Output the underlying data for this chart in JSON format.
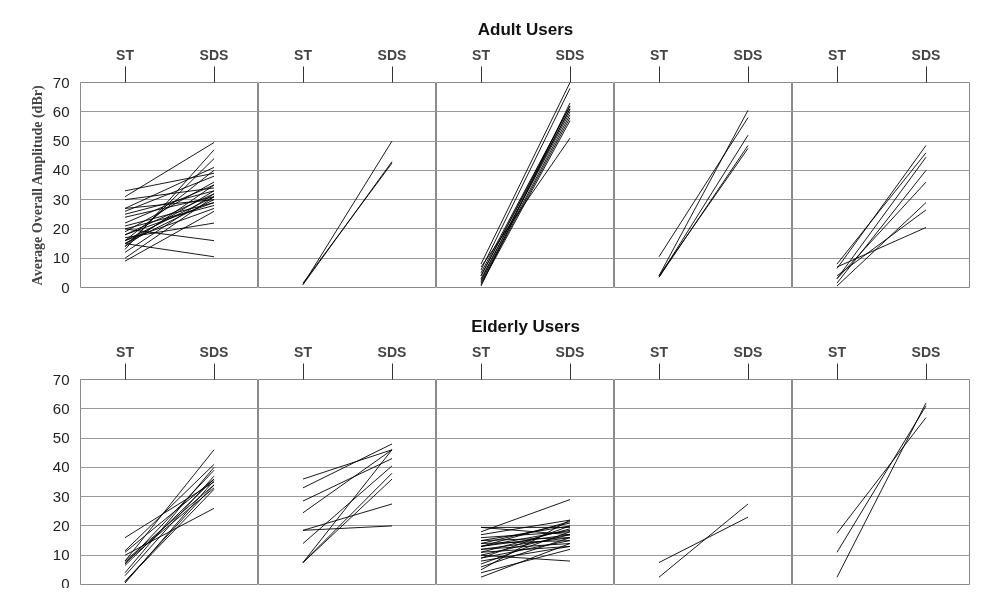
{
  "chart_data": [
    {
      "type": "line",
      "categories": [
        "ST",
        "SDS"
      ],
      "ylabel": "Average Overall Amplitude (dBr)",
      "ylim": [
        0,
        70
      ],
      "yticks": [
        0,
        10,
        20,
        30,
        40,
        50,
        60,
        70
      ],
      "grid": "y",
      "series": [
        {
          "color": "#000000",
          "values": [
            33,
            39
          ]
        },
        {
          "color": "#000000",
          "values": [
            30,
            34
          ]
        },
        {
          "color": "#000000",
          "values": [
            27,
            41
          ]
        },
        {
          "color": "#000000",
          "values": [
            27,
            30
          ]
        },
        {
          "color": "#000000",
          "values": [
            26,
            38
          ]
        },
        {
          "color": "#000000",
          "values": [
            25,
            33
          ]
        },
        {
          "color": "#000000",
          "values": [
            24,
            31
          ]
        },
        {
          "color": "#000000",
          "values": [
            22,
            35
          ]
        },
        {
          "color": "#000000",
          "values": [
            21,
            29
          ]
        },
        {
          "color": "#000000",
          "values": [
            20,
            16
          ]
        },
        {
          "color": "#000000",
          "values": [
            20,
            28
          ]
        },
        {
          "color": "#000000",
          "values": [
            19,
            36
          ]
        },
        {
          "color": "#000000",
          "values": [
            18,
            32
          ]
        },
        {
          "color": "#000000",
          "values": [
            17,
            22
          ]
        },
        {
          "color": "#000000",
          "values": [
            16,
            31
          ]
        },
        {
          "color": "#000000",
          "values": [
            16,
            40
          ]
        },
        {
          "color": "#000000",
          "values": [
            15,
            30
          ]
        },
        {
          "color": "#000000",
          "values": [
            15,
            10.5
          ]
        },
        {
          "color": "#000000",
          "values": [
            15,
            33
          ]
        },
        {
          "color": "#000000",
          "values": [
            14,
            44
          ]
        },
        {
          "color": "#000000",
          "values": [
            14,
            35
          ]
        },
        {
          "color": "#000000",
          "values": [
            13,
            47
          ]
        },
        {
          "color": "#000000",
          "values": [
            12,
            32
          ]
        },
        {
          "color": "#000000",
          "values": [
            10,
            31
          ]
        },
        {
          "color": "#000000",
          "values": [
            9,
            26
          ]
        },
        {
          "color": "#000000",
          "values": [
            18,
            29
          ]
        },
        {
          "color": "#000000",
          "values": [
            16,
            27
          ]
        },
        {
          "color": "#000000",
          "values": [
            31,
            49.5
          ]
        }
      ]
    },
    {
      "type": "line",
      "categories": [
        "ST",
        "SDS"
      ],
      "ylim": [
        0,
        70
      ],
      "yticks": [
        0,
        10,
        20,
        30,
        40,
        50,
        60,
        70
      ],
      "grid": "y",
      "tick_labels": "x",
      "series": [
        {
          "color": "#000000",
          "values": [
            1,
            50
          ]
        },
        {
          "color": "#000000",
          "values": [
            1,
            43
          ]
        },
        {
          "color": "#000000",
          "values": [
            1.5,
            42.5
          ]
        }
      ]
    },
    {
      "type": "line",
      "title": "Adult Users",
      "categories": [
        "ST",
        "SDS"
      ],
      "ylim": [
        0,
        70
      ],
      "yticks": [
        0,
        10,
        20,
        30,
        40,
        50,
        60,
        70
      ],
      "grid": "y",
      "tick_labels": "x",
      "series": [
        {
          "color": "#000000",
          "values": [
            8,
            70
          ]
        },
        {
          "color": "#000000",
          "values": [
            6,
            68
          ]
        },
        {
          "color": "#000000",
          "values": [
            5,
            62
          ]
        },
        {
          "color": "#000000",
          "values": [
            4,
            61
          ]
        },
        {
          "color": "#000000",
          "values": [
            3,
            60
          ]
        },
        {
          "color": "#000000",
          "values": [
            2,
            59
          ]
        },
        {
          "color": "#000000",
          "values": [
            1,
            57
          ]
        },
        {
          "color": "#000000",
          "values": [
            0.5,
            63
          ]
        },
        {
          "color": "#000000",
          "values": [
            2.5,
            61
          ]
        },
        {
          "color": "#000000",
          "values": [
            7,
            51
          ]
        },
        {
          "color": "#000000",
          "values": [
            1.5,
            58
          ]
        },
        {
          "color": "#000000",
          "values": [
            4,
            62
          ]
        }
      ]
    },
    {
      "type": "line",
      "categories": [
        "ST",
        "SDS"
      ],
      "ylim": [
        0,
        70
      ],
      "yticks": [
        0,
        10,
        20,
        30,
        40,
        50,
        60,
        70
      ],
      "grid": "y",
      "tick_labels": "x",
      "series": [
        {
          "color": "#000000",
          "values": [
            10.5,
            58
          ]
        },
        {
          "color": "#000000",
          "values": [
            4,
            60.5
          ]
        },
        {
          "color": "#000000",
          "values": [
            3.5,
            52
          ]
        },
        {
          "color": "#000000",
          "values": [
            3.5,
            48.5
          ]
        },
        {
          "color": "#000000",
          "values": [
            4,
            47.5
          ]
        }
      ]
    },
    {
      "type": "line",
      "categories": [
        "ST",
        "SDS"
      ],
      "ylim": [
        0,
        70
      ],
      "yticks": [
        0,
        10,
        20,
        30,
        40,
        50,
        60,
        70
      ],
      "grid": "y",
      "tick_labels": "x",
      "series": [
        {
          "color": "#000000",
          "values": [
            6.5,
            48.5
          ]
        },
        {
          "color": "#000000",
          "values": [
            8,
            46
          ]
        },
        {
          "color": "#000000",
          "values": [
            3,
            44.5
          ]
        },
        {
          "color": "#000000",
          "values": [
            1.5,
            40
          ]
        },
        {
          "color": "#000000",
          "values": [
            3,
            36
          ]
        },
        {
          "color": "#000000",
          "values": [
            0.5,
            29
          ]
        },
        {
          "color": "#000000",
          "values": [
            4,
            26.5
          ]
        },
        {
          "color": "#000000",
          "values": [
            7,
            20.5
          ]
        }
      ]
    },
    {
      "type": "line",
      "categories": [
        "ST",
        "SDS"
      ],
      "ylim": [
        0,
        70
      ],
      "yticks": [
        0,
        10,
        20,
        30,
        40,
        50,
        60,
        70
      ],
      "grid": "y",
      "series": [
        {
          "color": "#000000",
          "values": [
            16,
            35
          ]
        },
        {
          "color": "#000000",
          "values": [
            11.5,
            41
          ]
        },
        {
          "color": "#000000",
          "values": [
            11,
            36
          ]
        },
        {
          "color": "#000000",
          "values": [
            8,
            46
          ]
        },
        {
          "color": "#000000",
          "values": [
            8,
            34
          ]
        },
        {
          "color": "#000000",
          "values": [
            7,
            39
          ]
        },
        {
          "color": "#000000",
          "values": [
            7.5,
            33
          ]
        },
        {
          "color": "#000000",
          "values": [
            6.5,
            36
          ]
        },
        {
          "color": "#000000",
          "values": [
            3,
            37
          ]
        },
        {
          "color": "#000000",
          "values": [
            1,
            34
          ]
        },
        {
          "color": "#000000",
          "values": [
            0.5,
            35.5
          ]
        },
        {
          "color": "#000000",
          "values": [
            1,
            32.5
          ]
        },
        {
          "color": "#000000",
          "values": [
            10,
            26
          ]
        },
        {
          "color": "#000000",
          "values": [
            4,
            40
          ]
        }
      ]
    },
    {
      "type": "line",
      "categories": [
        "ST",
        "SDS"
      ],
      "ylim": [
        0,
        70
      ],
      "yticks": [
        0,
        10,
        20,
        30,
        40,
        50,
        60,
        70
      ],
      "grid": "y",
      "tick_labels": "x",
      "series": [
        {
          "color": "#000000",
          "values": [
            36,
            46
          ]
        },
        {
          "color": "#000000",
          "values": [
            33,
            48
          ]
        },
        {
          "color": "#000000",
          "values": [
            28.5,
            43
          ]
        },
        {
          "color": "#000000",
          "values": [
            24.5,
            46
          ]
        },
        {
          "color": "#000000",
          "values": [
            18.5,
            20
          ]
        },
        {
          "color": "#000000",
          "values": [
            18.5,
            27.5
          ]
        },
        {
          "color": "#000000",
          "values": [
            14,
            40.5
          ]
        },
        {
          "color": "#000000",
          "values": [
            7.5,
            46
          ]
        },
        {
          "color": "#000000",
          "values": [
            7.5,
            38
          ]
        },
        {
          "color": "#000000",
          "values": [
            7.5,
            36
          ]
        }
      ]
    },
    {
      "type": "line",
      "title": "Elderly Users",
      "categories": [
        "ST",
        "SDS"
      ],
      "ylim": [
        0,
        70
      ],
      "yticks": [
        0,
        10,
        20,
        30,
        40,
        50,
        60,
        70
      ],
      "grid": "y",
      "tick_labels": "x",
      "series": [
        {
          "color": "#000000",
          "values": [
            19.5,
            17
          ]
        },
        {
          "color": "#000000",
          "values": [
            19.5,
            19.5
          ]
        },
        {
          "color": "#000000",
          "values": [
            18,
            29
          ]
        },
        {
          "color": "#000000",
          "values": [
            17,
            22
          ]
        },
        {
          "color": "#000000",
          "values": [
            16,
            18
          ]
        },
        {
          "color": "#000000",
          "values": [
            15,
            20
          ]
        },
        {
          "color": "#000000",
          "values": [
            15,
            16
          ]
        },
        {
          "color": "#000000",
          "values": [
            14,
            15
          ]
        },
        {
          "color": "#000000",
          "values": [
            14,
            21
          ]
        },
        {
          "color": "#000000",
          "values": [
            13,
            17
          ]
        },
        {
          "color": "#000000",
          "values": [
            13,
            18.5
          ]
        },
        {
          "color": "#000000",
          "values": [
            12,
            16
          ]
        },
        {
          "color": "#000000",
          "values": [
            12,
            14
          ]
        },
        {
          "color": "#000000",
          "values": [
            11,
            19
          ]
        },
        {
          "color": "#000000",
          "values": [
            11,
            13
          ]
        },
        {
          "color": "#000000",
          "values": [
            10,
            17
          ]
        },
        {
          "color": "#000000",
          "values": [
            10,
            8
          ]
        },
        {
          "color": "#000000",
          "values": [
            9,
            20
          ]
        },
        {
          "color": "#000000",
          "values": [
            9,
            15
          ]
        },
        {
          "color": "#000000",
          "values": [
            8,
            13
          ]
        },
        {
          "color": "#000000",
          "values": [
            7,
            18
          ]
        },
        {
          "color": "#000000",
          "values": [
            6,
            16
          ]
        },
        {
          "color": "#000000",
          "values": [
            5,
            22
          ]
        },
        {
          "color": "#000000",
          "values": [
            2.5,
            14
          ]
        },
        {
          "color": "#000000",
          "values": [
            4,
            12
          ]
        },
        {
          "color": "#000000",
          "values": [
            13,
            21.5
          ]
        }
      ]
    },
    {
      "type": "line",
      "categories": [
        "ST",
        "SDS"
      ],
      "ylim": [
        0,
        70
      ],
      "yticks": [
        0,
        10,
        20,
        30,
        40,
        50,
        60,
        70
      ],
      "grid": "y",
      "tick_labels": "x",
      "series": [
        {
          "color": "#000000",
          "values": [
            7.5,
            23
          ]
        },
        {
          "color": "#000000",
          "values": [
            2.5,
            27.5
          ]
        }
      ]
    },
    {
      "type": "line",
      "categories": [
        "ST",
        "SDS"
      ],
      "ylim": [
        0,
        70
      ],
      "yticks": [
        0,
        10,
        20,
        30,
        40,
        50,
        60,
        70
      ],
      "grid": "y",
      "tick_labels": "x",
      "series": [
        {
          "color": "#000000",
          "values": [
            17.5,
            57
          ]
        },
        {
          "color": "#000000",
          "values": [
            11,
            61
          ]
        },
        {
          "color": "#000000",
          "values": [
            2.5,
            62
          ]
        }
      ]
    }
  ]
}
